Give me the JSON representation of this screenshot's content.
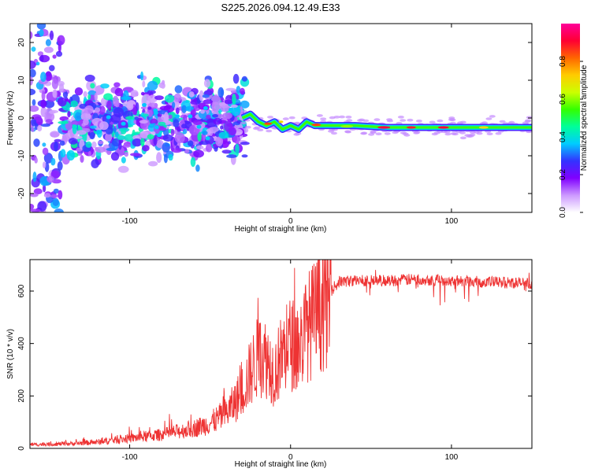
{
  "title": "S225.2026.094.12.49.E33",
  "chart_data": [
    {
      "type": "heatmap",
      "name": "spectrogram",
      "xlabel": "Height of straight line (km)",
      "ylabel": "Frequency (Hz)",
      "xlim": [
        -162,
        150
      ],
      "ylim": [
        -25,
        25
      ],
      "xticks": [
        -100,
        0,
        100
      ],
      "xtick_labels": [
        "-100",
        "0",
        "100"
      ],
      "yticks": [
        -20,
        -10,
        0,
        10,
        20
      ],
      "ytick_labels": [
        "-20",
        "-10",
        "0",
        "10",
        "20"
      ],
      "colorbar": {
        "label": "Normalized spectral amplitude",
        "range": [
          0,
          1
        ],
        "ticks": [
          0.0,
          0.2,
          0.4,
          0.6,
          0.8
        ],
        "tick_labels": [
          "0.0",
          "0.2",
          "0.4",
          "0.6",
          "0.8"
        ],
        "colors": [
          "#ffffff",
          "#cc99ff",
          "#8000ff",
          "#3333ff",
          "#00ccff",
          "#00ff99",
          "#33ff00",
          "#ccff00",
          "#ffcc00",
          "#ff6600",
          "#ff0033",
          "#ff0099"
        ]
      },
      "ridge": {
        "x": [
          -30,
          -25,
          -20,
          -15,
          -10,
          -5,
          0,
          5,
          10,
          15,
          20,
          40,
          60,
          80,
          100,
          120,
          150
        ],
        "freq": [
          0,
          1,
          -1,
          -2,
          -1,
          -3,
          -2,
          -3,
          -1,
          -2,
          -2,
          -2,
          -2.5,
          -2.5,
          -2.5,
          -2.5,
          -2.5
        ]
      }
    },
    {
      "type": "line",
      "name": "snr",
      "xlabel": "Height of straight line (km)",
      "ylabel": "SNR (10 * v/v)",
      "xlim": [
        -162,
        150
      ],
      "ylim": [
        0,
        720
      ],
      "xticks": [
        -100,
        0,
        100
      ],
      "xtick_labels": [
        "-100",
        "0",
        "100"
      ],
      "yticks": [
        0,
        200,
        400,
        600
      ],
      "ytick_labels": [
        "0",
        "200",
        "400",
        "600"
      ],
      "color": "#ee3333",
      "envelope": {
        "x": [
          -162,
          -140,
          -120,
          -100,
          -80,
          -60,
          -50,
          -40,
          -35,
          -30,
          -25,
          -20,
          -15,
          -10,
          -5,
          0,
          5,
          10,
          15,
          20,
          25,
          30,
          40,
          60,
          80,
          100,
          120,
          150
        ],
        "snr": [
          15,
          18,
          25,
          40,
          55,
          80,
          100,
          140,
          180,
          230,
          300,
          370,
          360,
          300,
          380,
          420,
          400,
          480,
          520,
          560,
          600,
          635,
          640,
          640,
          645,
          640,
          635,
          630
        ]
      }
    }
  ]
}
